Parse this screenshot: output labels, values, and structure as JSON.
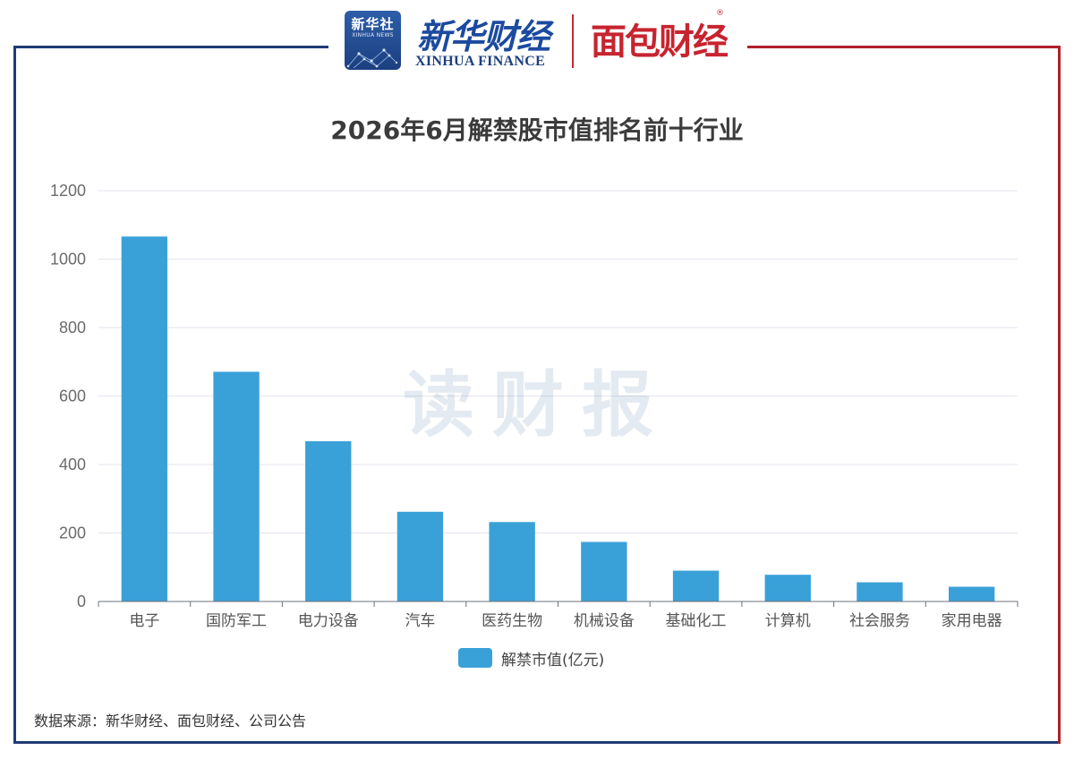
{
  "header": {
    "logo_xinhua_she": "新华社",
    "logo_xinhua_she_en": "XINHUA NEWS",
    "logo_finance_zh": "新华财经",
    "logo_finance_en": "XINHUA FINANCE",
    "logo_mianbao": "面包财经"
  },
  "watermark": "读财报",
  "source": "数据来源：新华财经、面包财经、公司公告",
  "colors": {
    "bar": "#3aa1d8",
    "frame_left": "#1f3b74",
    "frame_right": "#b0202a"
  },
  "chart_data": {
    "type": "bar",
    "title": "2026年6月解禁股市值排名前十行业",
    "categories": [
      "电子",
      "国防军工",
      "电力设备",
      "汽车",
      "医药生物",
      "机械设备",
      "基础化工",
      "计算机",
      "社会服务",
      "家用电器"
    ],
    "series": [
      {
        "name": "解禁市值(亿元)",
        "values": [
          1066,
          671,
          468,
          262,
          232,
          174,
          90,
          78,
          56,
          43
        ]
      }
    ],
    "ylim": [
      0,
      1200
    ],
    "yticks": [
      0,
      200,
      400,
      600,
      800,
      1000,
      1200
    ],
    "grid": true,
    "legend": "bottom"
  }
}
